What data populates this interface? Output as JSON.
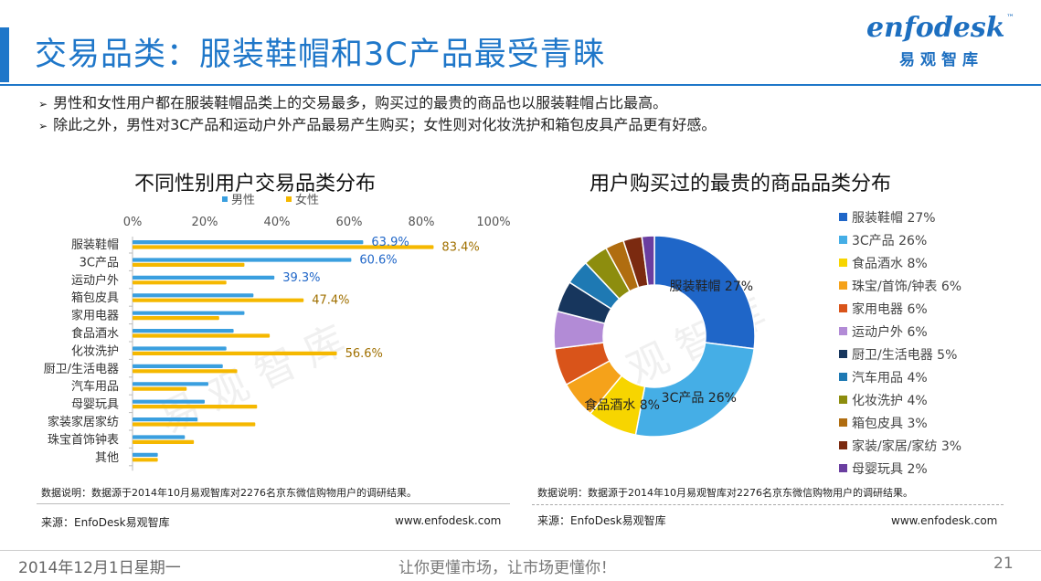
{
  "header": {
    "title": "交易品类：服装鞋帽和3C产品最受青睐",
    "logo_text": "enfodesk",
    "logo_tm": "™",
    "logo_cn": "易观智库"
  },
  "bullets": [
    "男性和女性用户都在服装鞋帽品类上的交易最多，购买过的最贵的商品也以服装鞋帽占比最高。",
    "除此之外，男性对3C产品和运动户外产品最易产生购买；女性则对化妆洗护和箱包皮具产品更有好感。"
  ],
  "bar_panel": {
    "note": "数据说明：数据源于2014年10月易观智库对2276名京东微信购物用户的调研结果。",
    "source": "来源：EnfoDesk易观智库",
    "url": "www.enfodesk.com"
  },
  "pie_panel": {
    "note": "数据说明：数据源于2014年10月易观智库对2276名京东微信购物用户的调研结果。",
    "source": "来源：EnfoDesk易观智库",
    "url": "www.enfodesk.com"
  },
  "footer": {
    "date": "2014年12月1日星期一",
    "slogan": "让你更懂市场，让市场更懂你！",
    "page": "21"
  },
  "watermark": "易 观 智 库",
  "chart_data": [
    {
      "type": "bar",
      "orientation": "horizontal",
      "title": "不同性别用户交易品类分布",
      "categories": [
        "服装鞋帽",
        "3C产品",
        "运动户外",
        "箱包皮具",
        "家用电器",
        "食品酒水",
        "化妆洗护",
        "厨卫/生活电器",
        "汽车用品",
        "母婴玩具",
        "家装家居家纺",
        "珠宝首饰钟表",
        "其他"
      ],
      "series": [
        {
          "name": "男性",
          "color": "#3a9fdf",
          "values": [
            63.9,
            60.6,
            39.3,
            33.5,
            31.0,
            28.0,
            26.0,
            25.0,
            21.0,
            20.0,
            18.0,
            14.5,
            7.0
          ]
        },
        {
          "name": "女性",
          "color": "#f5b800",
          "values": [
            83.4,
            31.0,
            26.0,
            47.4,
            24.0,
            38.0,
            56.6,
            29.0,
            15.0,
            34.5,
            34.0,
            17.0,
            7.0
          ]
        }
      ],
      "data_labels": [
        {
          "series": 0,
          "index": 0,
          "text": "63.9%"
        },
        {
          "series": 1,
          "index": 0,
          "text": "83.4%"
        },
        {
          "series": 0,
          "index": 1,
          "text": "60.6%"
        },
        {
          "series": 0,
          "index": 2,
          "text": "39.3%"
        },
        {
          "series": 1,
          "index": 3,
          "text": "47.4%"
        },
        {
          "series": 1,
          "index": 6,
          "text": "56.6%"
        }
      ],
      "xlim": [
        0,
        100
      ],
      "xticks": [
        "0%",
        "20%",
        "40%",
        "60%",
        "80%",
        "100%"
      ],
      "legend": "top",
      "grid": false
    },
    {
      "type": "pie",
      "donut": true,
      "title": "用户购买过的最贵的商品品类分布",
      "slices": [
        {
          "label": "服装鞋帽",
          "value": 27,
          "color": "#1f66c8"
        },
        {
          "label": "3C产品",
          "value": 26,
          "color": "#45aee6"
        },
        {
          "label": "食品酒水",
          "value": 8,
          "color": "#f7d500"
        },
        {
          "label": "珠宝/首饰/钟表",
          "value": 6,
          "color": "#f5a21a"
        },
        {
          "label": "家用电器",
          "value": 6,
          "color": "#d9541a"
        },
        {
          "label": "运动户外",
          "value": 6,
          "color": "#b28bd6"
        },
        {
          "label": "厨卫/生活电器",
          "value": 5,
          "color": "#17365d"
        },
        {
          "label": "汽车用品",
          "value": 4,
          "color": "#1e79b3"
        },
        {
          "label": "化妆洗护",
          "value": 4,
          "color": "#8d8d0e"
        },
        {
          "label": "箱包皮具",
          "value": 3,
          "color": "#b06d10"
        },
        {
          "label": "家装/家居/家纺",
          "value": 3,
          "color": "#7b2a10"
        },
        {
          "label": "母婴玩具",
          "value": 2,
          "color": "#6a3ea0"
        }
      ],
      "legend": "right",
      "inside_labels": [
        {
          "index": 0,
          "text": "服装鞋帽 27%"
        },
        {
          "index": 1,
          "text": "3C产品 26%"
        },
        {
          "index": 2,
          "text": "食品酒水 8%"
        }
      ]
    }
  ]
}
